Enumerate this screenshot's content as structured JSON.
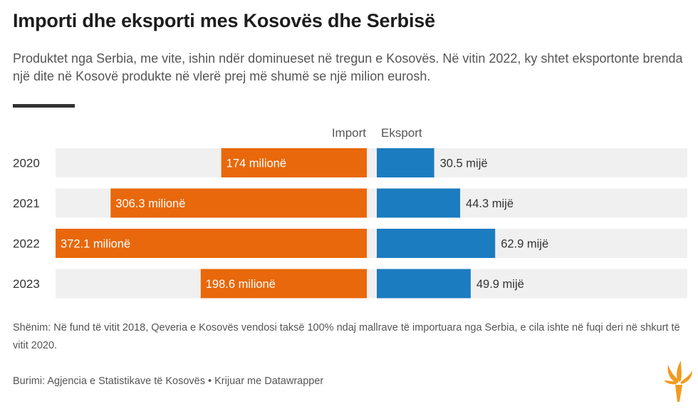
{
  "title": "Importi dhe eksporti mes Kosovës dhe Serbisë",
  "subtitle": "Produktet nga Serbia, me vite, ishin ndër dominueset në tregun e Kosovës. Në vitin 2022, ky shtet eksportonte brenda një dite në Kosovë produkte në vlerë prej më shumë se një milion eurosh.",
  "note": "Shënim: Në fund të vitit 2018, Qeveria e Kosovës vendosi taksë 100% ndaj mallrave të importuara nga Serbia, e cila ishte në fuqi deri në shkurt të vitit 2020.",
  "source": "Burimi: Agjencia e Statistikave të Kosovës • Krijuar me Datawrapper",
  "colors": {
    "import": "#e8680b",
    "export": "#1c7cc0",
    "row_bg": "#f0f0f0"
  },
  "chart_data": {
    "type": "bar",
    "title": "Importi dhe eksporti mes Kosovës dhe Serbisë",
    "categories": [
      "2020",
      "2021",
      "2022",
      "2023"
    ],
    "series": [
      {
        "name": "Import",
        "unit": "milionë",
        "values": [
          174,
          306.3,
          372.1,
          198.6
        ],
        "labels": [
          "174 milionë",
          "306.3 milionë",
          "372.1 milionë",
          "198.6 milionë"
        ]
      },
      {
        "name": "Eksport",
        "unit": "mijë",
        "values": [
          30.5,
          44.3,
          62.9,
          49.9
        ],
        "labels": [
          "30.5 mijë",
          "44.3 mijë",
          "62.9 mijë",
          "49.9 mijë"
        ]
      }
    ],
    "import_max": 372.1,
    "export_scale_max": 165,
    "legend": "top, above bars"
  }
}
